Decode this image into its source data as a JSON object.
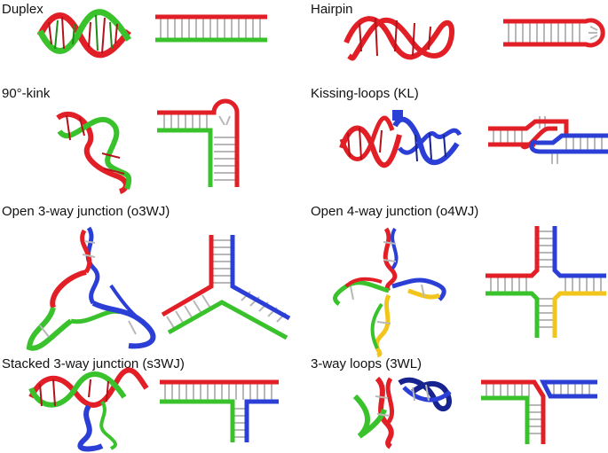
{
  "colors": {
    "red": "#e21f26",
    "red_dark": "#b3121a",
    "green": "#39c22b",
    "green_dark": "#1f8c18",
    "blue": "#2b3fd6",
    "blue_dark": "#17248f",
    "yellow": "#f2c51c",
    "rung": "#b8b8b8"
  },
  "panels": [
    {
      "title": "Duplex",
      "strands": [
        "red",
        "green"
      ]
    },
    {
      "title": "Hairpin",
      "strands": [
        "red"
      ]
    },
    {
      "title": "90°-kink",
      "strands": [
        "red",
        "green"
      ]
    },
    {
      "title": "Kissing-loops (KL)",
      "strands": [
        "red",
        "blue"
      ]
    },
    {
      "title": "Open 3-way junction (o3WJ)",
      "strands": [
        "red",
        "blue",
        "green"
      ]
    },
    {
      "title": "Open 4-way junction (o4WJ)",
      "strands": [
        "red",
        "blue",
        "green",
        "yellow"
      ]
    },
    {
      "title": "Stacked 3-way junction (s3WJ)",
      "strands": [
        "red",
        "green",
        "blue"
      ]
    },
    {
      "title": "3-way loops (3WL)",
      "strands": [
        "red",
        "blue",
        "green"
      ]
    }
  ]
}
